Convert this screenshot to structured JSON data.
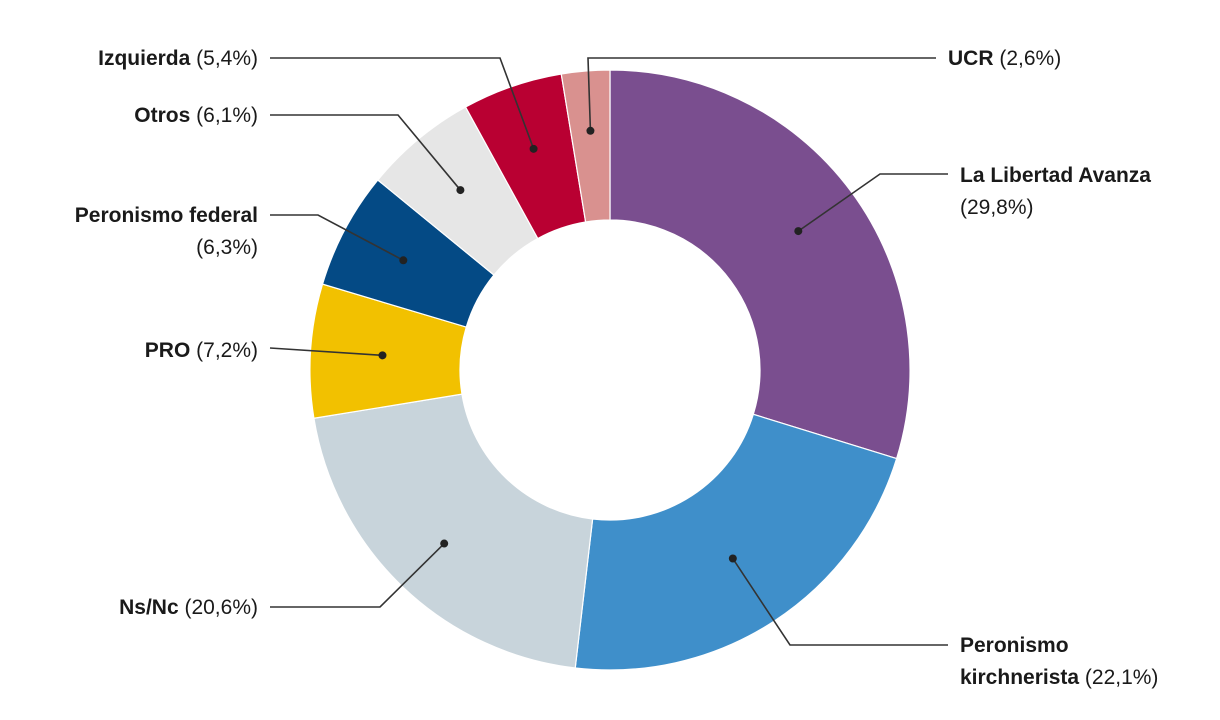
{
  "chart_data": {
    "type": "pie",
    "donut": true,
    "grid": false,
    "legend": "none",
    "slices": [
      {
        "name": "La Libertad Avanza",
        "value": 29.8,
        "label_pct": "(29,8%)",
        "color": "#7a4e8f"
      },
      {
        "name": "Peronismo kirchnerista",
        "value": 22.1,
        "label_pct": "(22,1%)",
        "color": "#3f8fca"
      },
      {
        "name": "Ns/Nc",
        "value": 20.6,
        "label_pct": "(20,6%)",
        "color": "#c8d4db"
      },
      {
        "name": "PRO",
        "value": 7.2,
        "label_pct": "(7,2%)",
        "color": "#f2c100"
      },
      {
        "name": "Peronismo federal",
        "value": 6.3,
        "label_pct": "(6,3%)",
        "color": "#044a85"
      },
      {
        "name": "Otros",
        "value": 6.1,
        "label_pct": "(6,1%)",
        "color": "#e6e6e6"
      },
      {
        "name": "Izquierda",
        "value": 5.4,
        "label_pct": "(5,4%)",
        "color": "#b90032"
      },
      {
        "name": "UCR",
        "value": 2.6,
        "label_pct": "(2,6%)",
        "color": "#d9918f"
      }
    ]
  }
}
